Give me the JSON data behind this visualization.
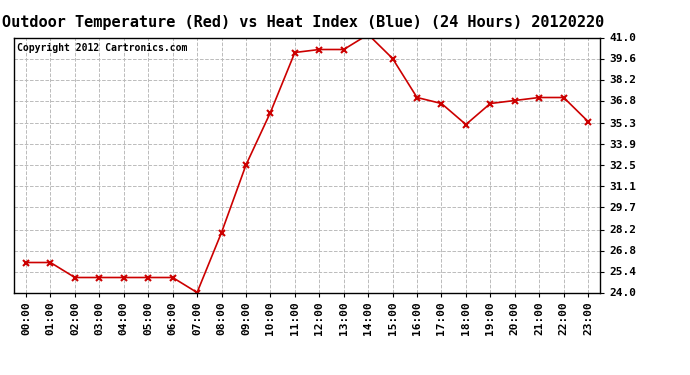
{
  "title": "Outdoor Temperature (Red) vs Heat Index (Blue) (24 Hours) 20120220",
  "copyright_text": "Copyright 2012 Cartronics.com",
  "x_labels": [
    "00:00",
    "01:00",
    "02:00",
    "03:00",
    "04:00",
    "05:00",
    "06:00",
    "07:00",
    "08:00",
    "09:00",
    "10:00",
    "11:00",
    "12:00",
    "13:00",
    "14:00",
    "15:00",
    "16:00",
    "17:00",
    "18:00",
    "19:00",
    "20:00",
    "21:00",
    "22:00",
    "23:00"
  ],
  "red_values": [
    26.0,
    26.0,
    25.0,
    25.0,
    25.0,
    25.0,
    25.0,
    24.0,
    28.0,
    32.5,
    36.0,
    40.0,
    40.2,
    40.2,
    41.2,
    39.6,
    37.0,
    36.6,
    35.2,
    36.6,
    36.8,
    37.0,
    37.0,
    35.4
  ],
  "y_min": 24.0,
  "y_max": 41.0,
  "y_ticks": [
    24.0,
    25.4,
    26.8,
    28.2,
    29.7,
    31.1,
    32.5,
    33.9,
    35.3,
    36.8,
    38.2,
    39.6,
    41.0
  ],
  "line_color_red": "#cc0000",
  "marker_style": "x",
  "bg_color": "#ffffff",
  "grid_color": "#bbbbbb",
  "title_fontsize": 11,
  "tick_fontsize": 8,
  "copyright_fontsize": 7
}
